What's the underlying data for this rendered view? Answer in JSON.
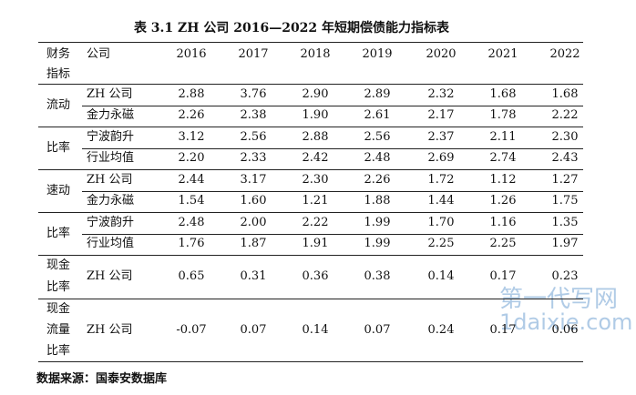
{
  "title": "表 3.1 ZH 公司 2016—2022 年短期偿债能力指标表",
  "header": {
    "label_lines": [
      "财务",
      "指标"
    ],
    "company": "公司",
    "years": [
      "2016",
      "2017",
      "2018",
      "2019",
      "2020",
      "2021",
      "2022"
    ]
  },
  "groups": [
    {
      "label_lines": [
        "流动",
        "比率"
      ],
      "rows": [
        {
          "company": "ZH 公司",
          "values": [
            "2.88",
            "3.76",
            "2.90",
            "2.89",
            "2.32",
            "1.68",
            "1.68"
          ]
        },
        {
          "company": "金力永磁",
          "values": [
            "2.26",
            "2.38",
            "1.90",
            "2.61",
            "2.17",
            "1.78",
            "2.22"
          ]
        },
        {
          "company": "宁波韵升",
          "values": [
            "3.12",
            "2.56",
            "2.88",
            "2.56",
            "2.37",
            "2.11",
            "2.30"
          ]
        },
        {
          "company": "行业均值",
          "values": [
            "2.20",
            "2.33",
            "2.42",
            "2.48",
            "2.69",
            "2.74",
            "2.43"
          ]
        }
      ]
    },
    {
      "label_lines": [
        "速动",
        "比率"
      ],
      "rows": [
        {
          "company": "ZH 公司",
          "values": [
            "2.44",
            "3.17",
            "2.30",
            "2.26",
            "1.72",
            "1.12",
            "1.27"
          ]
        },
        {
          "company": "金力永磁",
          "values": [
            "1.54",
            "1.60",
            "1.21",
            "1.88",
            "1.44",
            "1.26",
            "1.75"
          ]
        },
        {
          "company": "宁波韵升",
          "values": [
            "2.48",
            "2.00",
            "2.22",
            "1.99",
            "1.70",
            "1.16",
            "1.35"
          ]
        },
        {
          "company": "行业均值",
          "values": [
            "1.76",
            "1.87",
            "1.91",
            "1.99",
            "2.25",
            "2.25",
            "1.97"
          ]
        }
      ]
    },
    {
      "label_lines": [
        "现金",
        "比率"
      ],
      "rows": [
        {
          "company": "ZH 公司",
          "values": [
            "0.65",
            "0.31",
            "0.36",
            "0.38",
            "0.14",
            "0.17",
            "0.23"
          ]
        }
      ]
    },
    {
      "label_lines": [
        "现金",
        "流量",
        "比率"
      ],
      "rows": [
        {
          "company": "ZH 公司",
          "values": [
            "-0.07",
            "0.07",
            "0.14",
            "0.07",
            "0.24",
            "0.17",
            "0.06"
          ]
        }
      ]
    }
  ],
  "source": "数据来源：国泰安数据库",
  "watermark": [
    "第一代写网",
    "1daixie.com"
  ]
}
